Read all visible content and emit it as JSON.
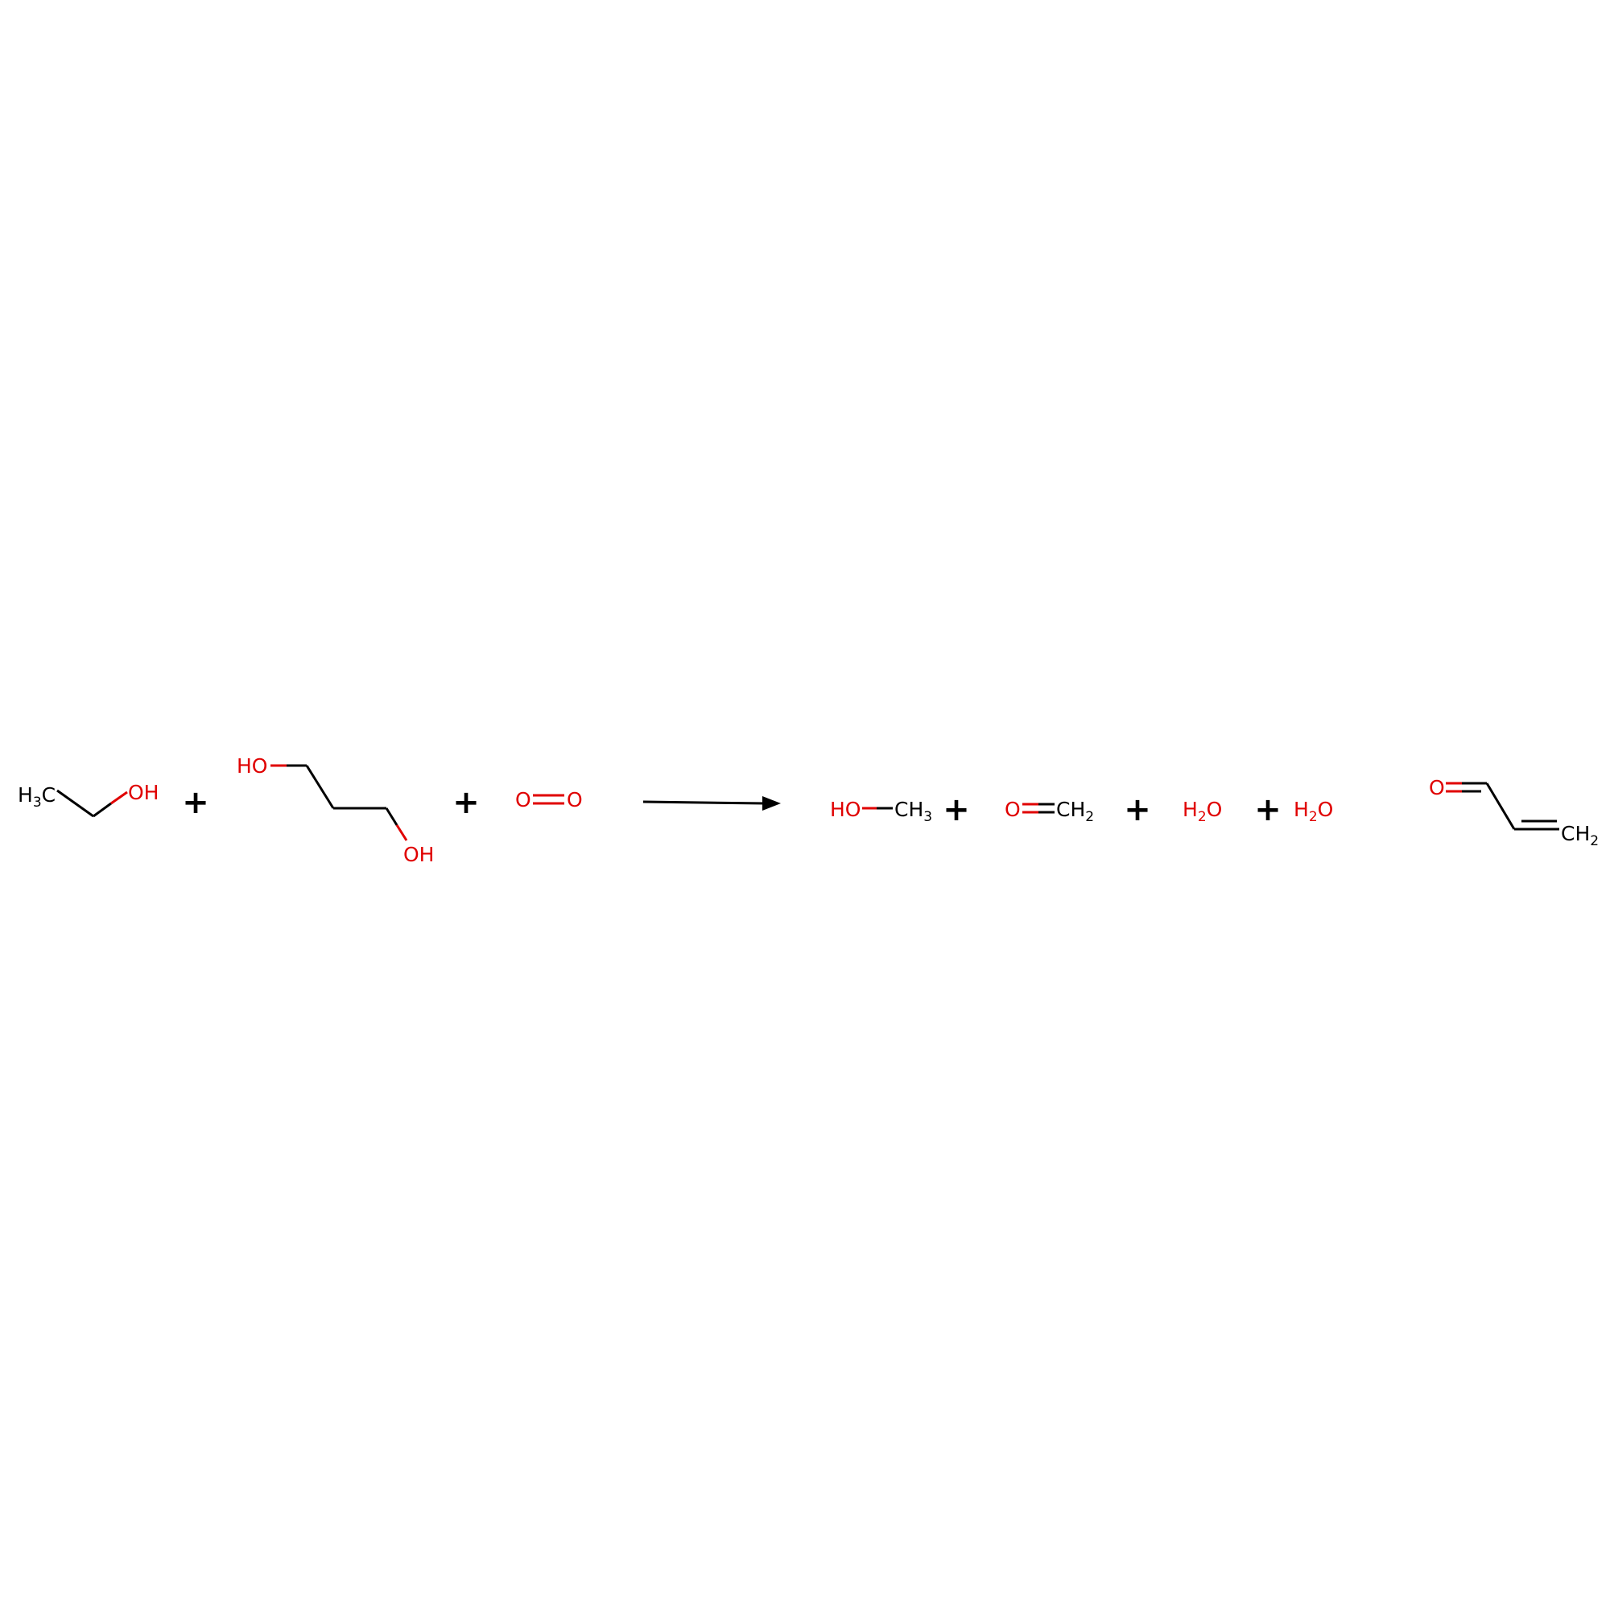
{
  "colors": {
    "carbon": "#000000",
    "oxygen": "#e00000",
    "background": "#ffffff"
  },
  "reaction": {
    "reactants": [
      {
        "name": "ethanol",
        "labels": {
          "ch3": {
            "main": "H",
            "sub": "3",
            "tail": "C"
          },
          "oh": "OH"
        }
      },
      {
        "name": "propane-1,3-diol",
        "labels": {
          "oh_top": "HO",
          "oh_bottom": "OH"
        }
      },
      {
        "name": "dioxygen",
        "labels": {
          "o1": "O",
          "o2": "O"
        }
      }
    ],
    "products": [
      {
        "name": "methanol",
        "labels": {
          "oh": "HO",
          "ch3": {
            "main": "CH",
            "sub": "3"
          }
        }
      },
      {
        "name": "formaldehyde",
        "labels": {
          "o": "O",
          "ch2": {
            "main": "CH",
            "sub": "2"
          }
        }
      },
      {
        "name": "water-1",
        "labels": {
          "h2o": {
            "main": "H",
            "sub": "2",
            "tail": "O"
          }
        }
      },
      {
        "name": "water-2",
        "labels": {
          "h2o": {
            "main": "H",
            "sub": "2",
            "tail": "O"
          }
        }
      },
      {
        "name": "acrolein",
        "labels": {
          "o": "O",
          "ch2": {
            "main": "CH",
            "sub": "2"
          }
        }
      }
    ],
    "plus_sign": "+"
  }
}
